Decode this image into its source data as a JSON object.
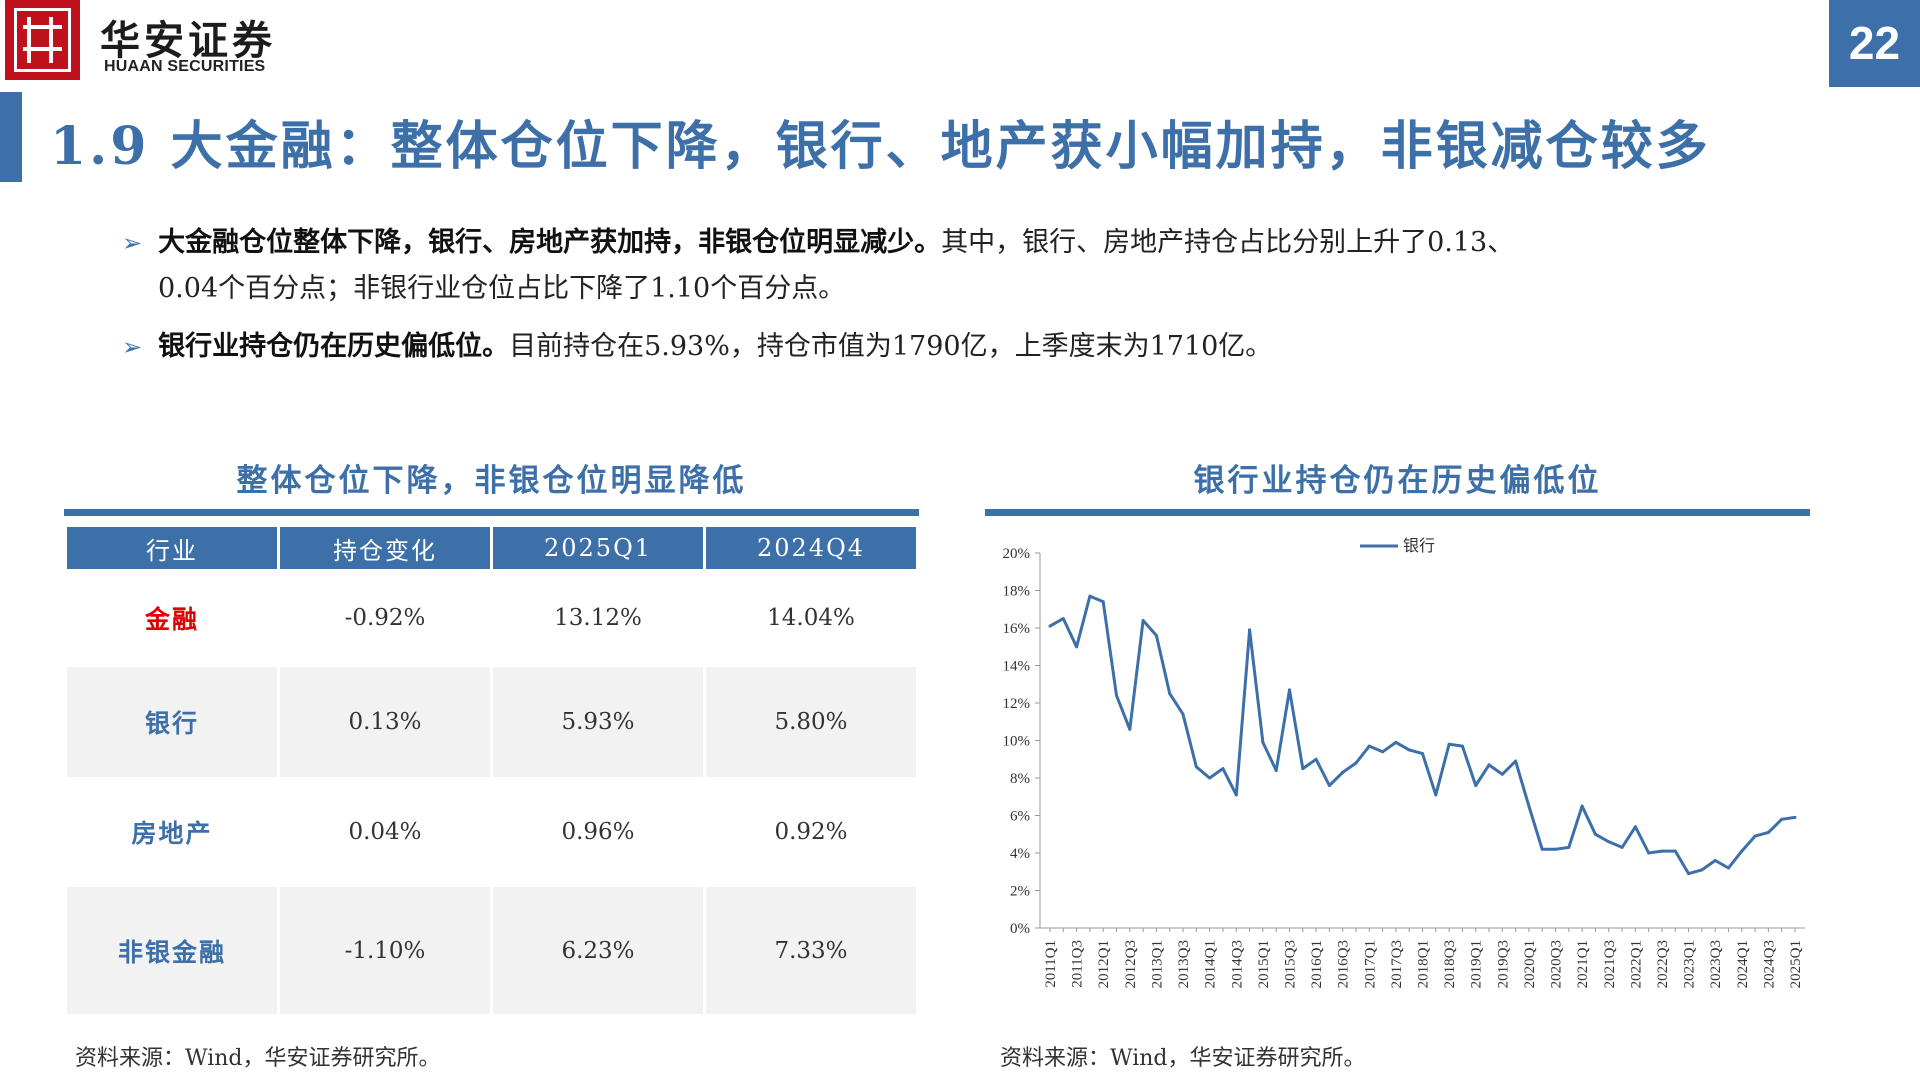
{
  "header": {
    "brand_cn": "华安证券",
    "brand_en": "HUAAN SECURITIES",
    "page_number": "22"
  },
  "title": "1.9 大金融：整体仓位下降，银行、地产获小幅加持，非银减仓较多",
  "bullets": [
    {
      "bold": "大金融仓位整体下降，银行、房地产获加持，非银仓位明显减少。",
      "line1": "其中，银行、房地产持仓占比分别上升了0.13、",
      "line2": "0.04个百分点；非银行业仓位占比下降了1.10个百分点。"
    },
    {
      "bold": "银行业持仓仍在历史偏低位。",
      "rest": "目前持仓在5.93%，持仓市值为1790亿，上季度末为1710亿。"
    }
  ],
  "table": {
    "title": "整体仓位下降，非银仓位明显降低",
    "headers": [
      "行业",
      "持仓变化",
      "2025Q1",
      "2024Q4"
    ],
    "rows": [
      [
        "金融",
        "-0.92%",
        "13.12%",
        "14.04%"
      ],
      [
        "银行",
        "0.13%",
        "5.93%",
        "5.80%"
      ],
      [
        "房地产",
        "0.04%",
        "0.96%",
        "0.92%"
      ],
      [
        "非银金融",
        "-1.10%",
        "6.23%",
        "7.33%"
      ]
    ],
    "source": "资料来源：Wind，华安证券研究所。"
  },
  "chart_data": {
    "type": "line",
    "title": "银行业持仓仍在历史偏低位",
    "x": [
      "2011Q1",
      "2011Q2",
      "2011Q3",
      "2011Q4",
      "2012Q1",
      "2012Q2",
      "2012Q3",
      "2012Q4",
      "2013Q1",
      "2013Q2",
      "2013Q3",
      "2013Q4",
      "2014Q1",
      "2014Q2",
      "2014Q3",
      "2014Q4",
      "2015Q1",
      "2015Q2",
      "2015Q3",
      "2015Q4",
      "2016Q1",
      "2016Q2",
      "2016Q3",
      "2016Q4",
      "2017Q1",
      "2017Q2",
      "2017Q3",
      "2017Q4",
      "2018Q1",
      "2018Q2",
      "2018Q3",
      "2018Q4",
      "2019Q1",
      "2019Q2",
      "2019Q3",
      "2019Q4",
      "2020Q1",
      "2020Q2",
      "2020Q3",
      "2020Q4",
      "2021Q1",
      "2021Q2",
      "2021Q3",
      "2021Q4",
      "2022Q1",
      "2022Q2",
      "2022Q3",
      "2022Q4",
      "2023Q1",
      "2023Q2",
      "2023Q3",
      "2023Q4",
      "2024Q1",
      "2024Q2",
      "2024Q3",
      "2024Q4",
      "2025Q1"
    ],
    "x_tick_labels": [
      "2011Q1",
      "2011Q3",
      "2012Q1",
      "2012Q3",
      "2013Q1",
      "2013Q3",
      "2014Q1",
      "2014Q3",
      "2015Q1",
      "2015Q3",
      "2016Q1",
      "2016Q3",
      "2017Q1",
      "2017Q3",
      "2018Q1",
      "2018Q3",
      "2019Q1",
      "2019Q3",
      "2020Q1",
      "2020Q3",
      "2021Q1",
      "2021Q3",
      "2022Q1",
      "2022Q3",
      "2023Q1",
      "2023Q3",
      "2024Q1",
      "2024Q3",
      "2025Q1"
    ],
    "series": [
      {
        "name": "银行",
        "color": "#3d6fa8",
        "values": [
          16.1,
          16.5,
          15.0,
          17.7,
          17.4,
          12.4,
          10.6,
          16.4,
          15.6,
          12.5,
          11.4,
          8.6,
          8.0,
          8.5,
          7.1,
          15.9,
          9.9,
          8.4,
          12.7,
          8.5,
          9.0,
          7.6,
          8.3,
          8.8,
          9.7,
          9.4,
          9.9,
          9.5,
          9.3,
          7.1,
          9.8,
          9.7,
          7.6,
          8.7,
          8.2,
          8.9,
          6.5,
          4.2,
          4.2,
          4.3,
          6.5,
          5.0,
          4.6,
          4.3,
          5.4,
          4.0,
          4.1,
          4.1,
          2.9,
          3.1,
          3.6,
          3.2,
          4.1,
          4.9,
          5.1,
          5.8,
          5.9
        ]
      }
    ],
    "ylim": [
      0,
      20
    ],
    "y_ticks": [
      0,
      2,
      4,
      6,
      8,
      10,
      12,
      14,
      16,
      18,
      20
    ],
    "y_tick_format": "%",
    "legend": "top-center",
    "grid": false,
    "source": "资料来源：Wind，华安证券研究所。"
  }
}
